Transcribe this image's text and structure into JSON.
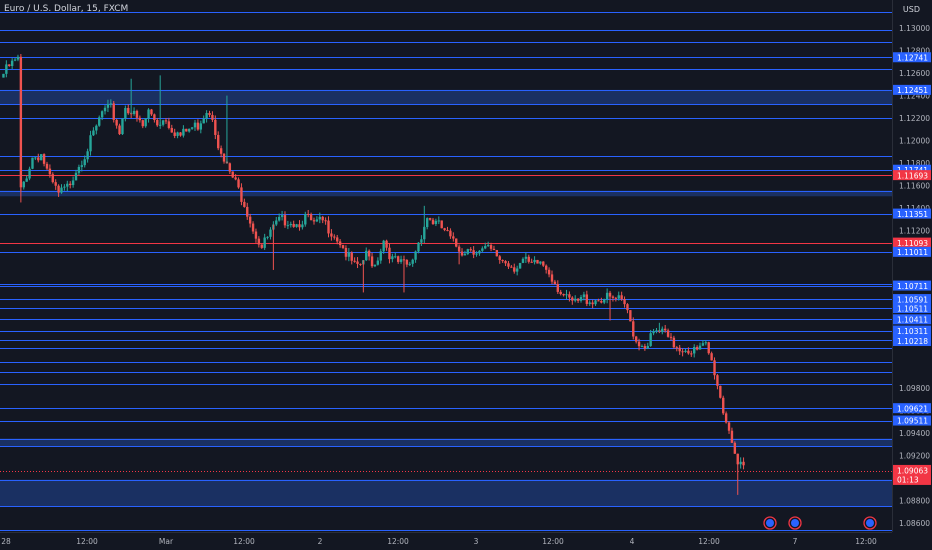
{
  "header": {
    "symbol_title": "Euro / U.S. Dollar, 15, FXCM",
    "currency": "USD"
  },
  "colors": {
    "background": "#131722",
    "up": "#26a69a",
    "down": "#ef5350",
    "level_line": "#2962ff",
    "zone_fill": "#1e3a78",
    "label_blue": "#2962ff",
    "label_red": "#f23645",
    "red_line": "#f23645",
    "event_icon": "#2962ff",
    "axis_text": "#b2b5be"
  },
  "chart_data": {
    "type": "candlestick",
    "title": "Euro / U.S. Dollar, 15, FXCM",
    "ylabel": "USD",
    "ylim": [
      1.0852,
      1.1325
    ],
    "x_ticks": [
      "28",
      "12:00",
      "Mar",
      "12:00",
      "2",
      "12:00",
      "3",
      "12:00",
      "4",
      "12:00",
      "7",
      "12:00"
    ],
    "y_ticks": [
      1.13,
      1.128,
      1.126,
      1.124,
      1.122,
      1.12,
      1.118,
      1.116,
      1.114,
      1.112,
      1.11,
      1.098,
      1.096,
      1.094,
      1.092,
      1.088,
      1.086
    ],
    "y_tick_labels": [
      "1.13000",
      "1.12800",
      "1.12600",
      "1.12400",
      "1.12200",
      "1.12000",
      "1.11800",
      "1.11600",
      "1.11400",
      "1.11200",
      "1.11000",
      "1.09800",
      "1.09600",
      "1.09400",
      "1.09200",
      "1.08800",
      "1.08600"
    ],
    "y_tick_shown": [
      true,
      true,
      true,
      true,
      true,
      true,
      true,
      true,
      true,
      true,
      false,
      true,
      true,
      true,
      true,
      true,
      true
    ],
    "price_path": [
      [
        0,
        1.1256
      ],
      [
        3,
        1.1266
      ],
      [
        6,
        1.1272
      ],
      [
        7,
        1.1155
      ],
      [
        11,
        1.1185
      ],
      [
        14,
        1.1188
      ],
      [
        17,
        1.1165
      ],
      [
        20,
        1.1152
      ],
      [
        23,
        1.1158
      ],
      [
        26,
        1.1175
      ],
      [
        29,
        1.1188
      ],
      [
        32,
        1.1205
      ],
      [
        35,
        1.1225
      ],
      [
        38,
        1.1228
      ],
      [
        41,
        1.1208
      ],
      [
        43,
        1.1232
      ],
      [
        46,
        1.1222
      ],
      [
        49,
        1.1212
      ],
      [
        51,
        1.1226
      ],
      [
        54,
        1.1216
      ],
      [
        57,
        1.122
      ],
      [
        59,
        1.1211
      ],
      [
        62,
        1.1204
      ],
      [
        65,
        1.121
      ],
      [
        68,
        1.1214
      ],
      [
        71,
        1.1228
      ],
      [
        73,
        1.1223
      ],
      [
        76,
        1.1185
      ],
      [
        80,
        1.1167
      ],
      [
        84,
        1.1145
      ],
      [
        87,
        1.1122
      ],
      [
        90,
        1.1105
      ],
      [
        93,
        1.1118
      ],
      [
        96,
        1.1128
      ],
      [
        99,
        1.113
      ],
      [
        102,
        1.1126
      ],
      [
        105,
        1.1132
      ],
      [
        108,
        1.1125
      ],
      [
        111,
        1.1128
      ],
      [
        114,
        1.112
      ],
      [
        117,
        1.111
      ],
      [
        120,
        1.1095
      ],
      [
        123,
        1.1085
      ],
      [
        126,
        1.1098
      ],
      [
        129,
        1.109
      ],
      [
        132,
        1.1112
      ],
      [
        135,
        1.1094
      ],
      [
        138,
        1.109
      ],
      [
        141,
        1.1088
      ],
      [
        144,
        1.111
      ],
      [
        147,
        1.1132
      ],
      [
        150,
        1.1126
      ],
      [
        153,
        1.112
      ],
      [
        156,
        1.1108
      ],
      [
        159,
        1.1102
      ],
      [
        162,
        1.1105
      ],
      [
        165,
        1.1101
      ],
      [
        168,
        1.1103
      ],
      [
        171,
        1.1097
      ],
      [
        174,
        1.1092
      ],
      [
        177,
        1.1088
      ],
      [
        180,
        1.1093
      ],
      [
        183,
        1.1088
      ],
      [
        186,
        1.1092
      ],
      [
        189,
        1.1084
      ],
      [
        192,
        1.107
      ],
      [
        195,
        1.1058
      ],
      [
        198,
        1.1055
      ],
      [
        201,
        1.106
      ],
      [
        204,
        1.1058
      ],
      [
        207,
        1.106
      ],
      [
        210,
        1.1059
      ],
      [
        213,
        1.1058
      ],
      [
        216,
        1.1048
      ],
      [
        219,
        1.1022
      ],
      [
        222,
        1.1018
      ],
      [
        225,
        1.1028
      ],
      [
        228,
        1.103
      ],
      [
        231,
        1.102
      ],
      [
        234,
        1.1016
      ],
      [
        237,
        1.1015
      ],
      [
        240,
        1.1012
      ],
      [
        243,
        1.1018
      ],
      [
        246,
        1.0995
      ],
      [
        249,
        1.096
      ],
      [
        252,
        1.0935
      ],
      [
        254,
        1.0912
      ],
      [
        256,
        1.0906
      ]
    ],
    "spikes": [
      [
        6,
        1.1145
      ],
      [
        44,
        1.1255
      ],
      [
        54,
        1.1258
      ],
      [
        77,
        1.124
      ],
      [
        93,
        1.1085
      ],
      [
        124,
        1.1065
      ],
      [
        138,
        1.1065
      ],
      [
        145,
        1.1142
      ],
      [
        157,
        1.109
      ],
      [
        209,
        1.104
      ],
      [
        226,
        1.1038
      ],
      [
        253,
        1.0885
      ]
    ],
    "horizontal_levels": [
      1.13145,
      1.12985,
      1.12875,
      1.12741,
      1.12635,
      1.12451,
      1.12325,
      1.12201,
      1.11865,
      1.11741,
      1.11693,
      1.11555,
      1.11351,
      1.11093,
      1.11011,
      1.10725,
      1.10711,
      1.10591,
      1.10511,
      1.10411,
      1.10311,
      1.10231,
      1.10155,
      1.10035,
      1.09945,
      1.09835,
      1.09621,
      1.09511,
      1.09351,
      1.09285,
      1.08985,
      1.08751,
      1.08535
    ],
    "red_levels": [
      1.11693,
      1.11093
    ],
    "shaded_zones": [
      [
        1.12325,
        1.12451
      ],
      [
        1.11505,
        1.11555
      ],
      [
        1.09285,
        1.09351
      ],
      [
        1.08751,
        1.08985
      ]
    ],
    "price_labels": [
      {
        "value": 1.12741,
        "text": "1.12741",
        "color": "blue"
      },
      {
        "value": 1.12451,
        "text": "1.12451",
        "color": "blue"
      },
      {
        "value": 1.11741,
        "text": "1.11741",
        "color": "blue"
      },
      {
        "value": 1.11693,
        "text": "1.11693",
        "color": "red"
      },
      {
        "value": 1.11351,
        "text": "1.11351",
        "color": "blue"
      },
      {
        "value": 1.11093,
        "text": "1.11093",
        "color": "red"
      },
      {
        "value": 1.11011,
        "text": "1.11011",
        "color": "blue"
      },
      {
        "value": 1.10711,
        "text": "1.10711",
        "color": "blue"
      },
      {
        "value": 1.10591,
        "text": "1.10591",
        "color": "blue"
      },
      {
        "value": 1.10511,
        "text": "1.10511",
        "color": "blue"
      },
      {
        "value": 1.10411,
        "text": "1.10411",
        "color": "blue"
      },
      {
        "value": 1.10311,
        "text": "1.10311",
        "color": "blue"
      },
      {
        "value": 1.10231,
        "text": "1.10231",
        "color": "blue"
      },
      {
        "value": 1.10218,
        "text": "1.10218",
        "color": "blue"
      },
      {
        "value": 1.09621,
        "text": "1.09621",
        "color": "blue"
      },
      {
        "value": 1.09511,
        "text": "1.09511",
        "color": "blue"
      }
    ],
    "current_price": {
      "value": 1.09063,
      "text": "1.09063",
      "countdown": "01:13"
    },
    "events": [
      {
        "x_index": 0
      },
      {
        "x_index": 1
      },
      {
        "x_index": 2
      }
    ]
  }
}
